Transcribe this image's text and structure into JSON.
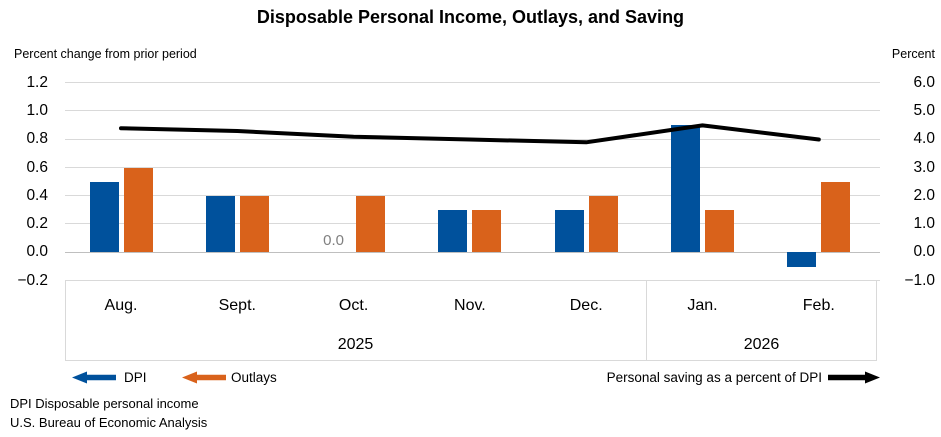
{
  "title": "Disposable Personal Income, Outlays, and Saving",
  "left_axis": {
    "label": "Percent change from prior period",
    "ticks": [
      "1.2",
      "1.0",
      "0.8",
      "0.6",
      "0.4",
      "0.2",
      "0.0",
      "−0.2"
    ]
  },
  "right_axis": {
    "label": "Percent",
    "ticks": [
      "6.0",
      "5.0",
      "4.0",
      "3.0",
      "2.0",
      "1.0",
      "0.0",
      "−1.0"
    ]
  },
  "chart_data": {
    "type": "bar",
    "subtype": "grouped bars with overlaid line on secondary axis",
    "categories": [
      "Aug.",
      "Sept.",
      "Oct.",
      "Nov.",
      "Dec.",
      "Jan.",
      "Feb."
    ],
    "year_groups": [
      {
        "label": "2025",
        "months": [
          "Aug.",
          "Sept.",
          "Oct.",
          "Nov.",
          "Dec."
        ]
      },
      {
        "label": "2026",
        "months": [
          "Jan.",
          "Feb."
        ]
      }
    ],
    "series": [
      {
        "name": "DPI",
        "type": "bar",
        "axis": "left",
        "color": "#00519C",
        "values": [
          0.5,
          0.4,
          0.0,
          0.3,
          0.3,
          0.9,
          -0.1
        ]
      },
      {
        "name": "Outlays",
        "type": "bar",
        "axis": "left",
        "color": "#D9621B",
        "values": [
          0.6,
          0.4,
          0.4,
          0.3,
          0.4,
          0.3,
          0.5
        ]
      },
      {
        "name": "Personal saving as a percent of DPI",
        "type": "line",
        "axis": "right",
        "color": "#000000",
        "values": [
          4.4,
          4.3,
          4.1,
          4.0,
          3.9,
          4.5,
          4.0
        ]
      }
    ],
    "title": "Disposable Personal Income, Outlays, and Saving",
    "left_ylabel": "Percent change from prior period",
    "right_ylabel": "Percent",
    "left_ylim": [
      -0.2,
      1.2
    ],
    "right_ylim": [
      -1.0,
      6.0
    ],
    "grid": "horizontal",
    "zero_value_label": {
      "series": "DPI",
      "category": "Oct.",
      "text": "0.0"
    },
    "legend_position": "bottom"
  },
  "legend": {
    "dpi_label": "DPI",
    "outlays_label": "Outlays",
    "saving_label": "Personal saving as a percent of DPI"
  },
  "footnotes": [
    "DPI Disposable personal income",
    "U.S. Bureau of Economic Analysis"
  ],
  "colors": {
    "dpi": "#00519C",
    "outlays": "#D9621B",
    "saving_line": "#000000",
    "gridline": "#D9D9D9",
    "zero_line": "#BFBFBF",
    "zero_label": "#808080"
  }
}
